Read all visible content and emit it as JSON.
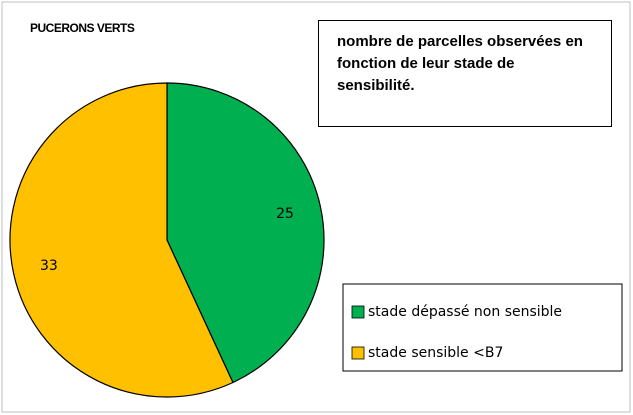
{
  "chart_data": {
    "type": "pie",
    "title": "PUCERONS VERTS",
    "annotation": "nombre de parcelles observées en fonction de leur stade de sensibilité.",
    "categories": [
      "stade dépassé non sensible",
      "stade sensible <B7"
    ],
    "values": [
      25,
      33
    ],
    "colors": [
      "#00b050",
      "#ffc000"
    ],
    "legend": "bottom-right"
  }
}
